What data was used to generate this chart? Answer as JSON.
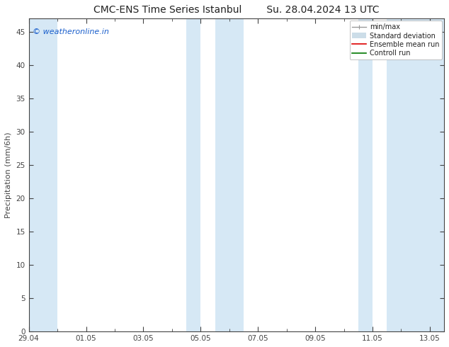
{
  "title_left": "CMC-ENS Time Series Istanbul",
  "title_right": "Su. 28.04.2024 13 UTC",
  "ylabel": "Precipitation (mm/6h)",
  "xlabel": "",
  "ylim": [
    0,
    47
  ],
  "yticks": [
    0,
    5,
    10,
    15,
    20,
    25,
    30,
    35,
    40,
    45
  ],
  "xtick_labels": [
    "29.04",
    "01.05",
    "03.05",
    "05.05",
    "07.05",
    "09.05",
    "11.05",
    "13.05"
  ],
  "xtick_positions": [
    0,
    2,
    4,
    6,
    8,
    10,
    12,
    14
  ],
  "x_min": 0.0,
  "x_max": 14.5,
  "background_color": "#ffffff",
  "plot_bg_color": "#ffffff",
  "shaded_color": "#d6e8f5",
  "shaded_regions": [
    [
      0.0,
      1.0
    ],
    [
      5.5,
      6.0
    ],
    [
      6.5,
      7.5
    ],
    [
      11.5,
      12.0
    ],
    [
      12.5,
      14.5
    ]
  ],
  "watermark_text": "© weatheronline.in",
  "watermark_color": "#1a5fcc",
  "watermark_fontsize": 8,
  "title_fontsize": 10,
  "tick_fontsize": 7.5,
  "ylabel_fontsize": 8,
  "tick_color": "#444444",
  "spine_color": "#444444",
  "legend_fontsize": 7,
  "legend_items": [
    {
      "label": "min/max",
      "type": "hline",
      "color": "#aaaaaa"
    },
    {
      "label": "Standard deviation",
      "type": "patch",
      "color": "#ccdde8"
    },
    {
      "label": "Ensemble mean run",
      "type": "line",
      "color": "#dd0000"
    },
    {
      "label": "Controll run",
      "type": "line",
      "color": "#007700"
    }
  ]
}
